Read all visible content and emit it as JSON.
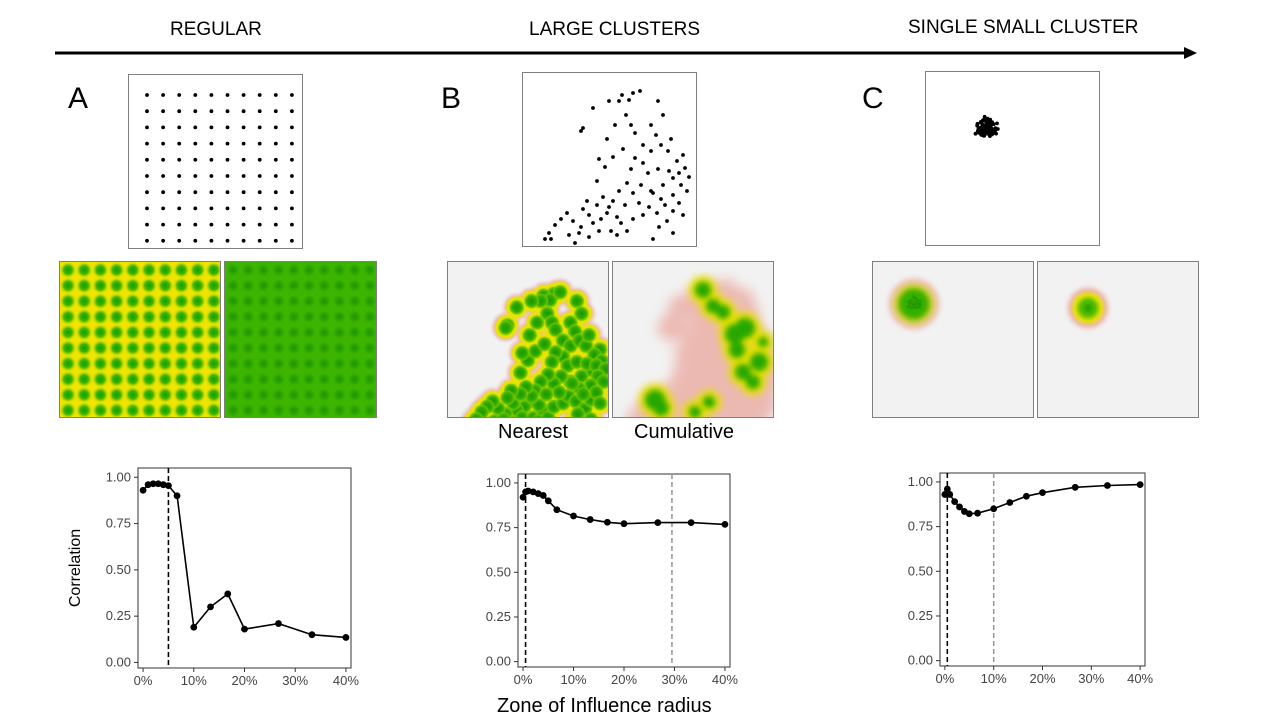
{
  "headers": {
    "regular": "REGULAR",
    "large_clusters": "LARGE CLUSTERS",
    "single_small_cluster": "SINGLE SMALL CLUSTER"
  },
  "panels": {
    "a": "A",
    "b": "B",
    "c": "C"
  },
  "captions": {
    "nearest": "Nearest",
    "cumulative": "Cumulative"
  },
  "axes": {
    "y_label": "Correlation",
    "x_label": "Zone of Influence radius"
  },
  "colors": {
    "green": "#22a600",
    "yellow": "#e8e800",
    "halo": "#e8a0a0",
    "background": "#f2f2f2"
  },
  "chart_data": [
    {
      "type": "line",
      "panel": "A",
      "x": [
        0,
        1,
        2,
        3,
        4,
        5,
        6.7,
        10,
        13.3,
        16.7,
        20,
        26.7,
        33.3,
        40
      ],
      "y": [
        0.93,
        0.96,
        0.965,
        0.965,
        0.96,
        0.955,
        0.9,
        0.19,
        0.3,
        0.37,
        0.18,
        0.21,
        0.15,
        0.135
      ],
      "vlines": [
        {
          "x": 5,
          "style": "dashed",
          "color": "black"
        }
      ],
      "xlim": [
        -1,
        41
      ],
      "ylim": [
        -0.03,
        1.05
      ],
      "x_ticks": [
        "0%",
        "10%",
        "20%",
        "30%",
        "40%"
      ],
      "y_ticks": [
        "0.00",
        "0.25",
        "0.50",
        "0.75",
        "1.00"
      ]
    },
    {
      "type": "line",
      "panel": "B",
      "x": [
        0,
        0.5,
        1,
        2,
        3,
        4,
        5,
        6.7,
        10,
        13.3,
        16.7,
        20,
        26.7,
        33.3,
        40
      ],
      "y": [
        0.92,
        0.95,
        0.955,
        0.95,
        0.94,
        0.93,
        0.9,
        0.85,
        0.815,
        0.795,
        0.78,
        0.772,
        0.778,
        0.778,
        0.768
      ],
      "vlines": [
        {
          "x": 0.5,
          "style": "dashed",
          "color": "black"
        },
        {
          "x": 29.5,
          "style": "dashed",
          "color": "grey"
        }
      ],
      "xlim": [
        -1,
        41
      ],
      "ylim": [
        -0.03,
        1.05
      ],
      "x_ticks": [
        "0%",
        "10%",
        "20%",
        "30%",
        "40%"
      ],
      "y_ticks": [
        "0.00",
        "0.25",
        "0.50",
        "0.75",
        "1.00"
      ]
    },
    {
      "type": "line",
      "panel": "C",
      "x": [
        0,
        0.5,
        1,
        2,
        3,
        4,
        5,
        6.7,
        10,
        13.3,
        16.7,
        20,
        26.7,
        33.3,
        40
      ],
      "y": [
        0.93,
        0.96,
        0.93,
        0.89,
        0.86,
        0.835,
        0.822,
        0.825,
        0.85,
        0.885,
        0.92,
        0.94,
        0.97,
        0.98,
        0.985
      ],
      "vlines": [
        {
          "x": 0.5,
          "style": "dashed",
          "color": "black"
        },
        {
          "x": 10,
          "style": "dashed",
          "color": "grey"
        }
      ],
      "xlim": [
        -1,
        41
      ],
      "ylim": [
        -0.03,
        1.05
      ],
      "x_ticks": [
        "0%",
        "10%",
        "20%",
        "30%",
        "40%"
      ],
      "y_ticks": [
        "0.00",
        "0.25",
        "0.50",
        "0.75",
        "1.00"
      ]
    }
  ]
}
